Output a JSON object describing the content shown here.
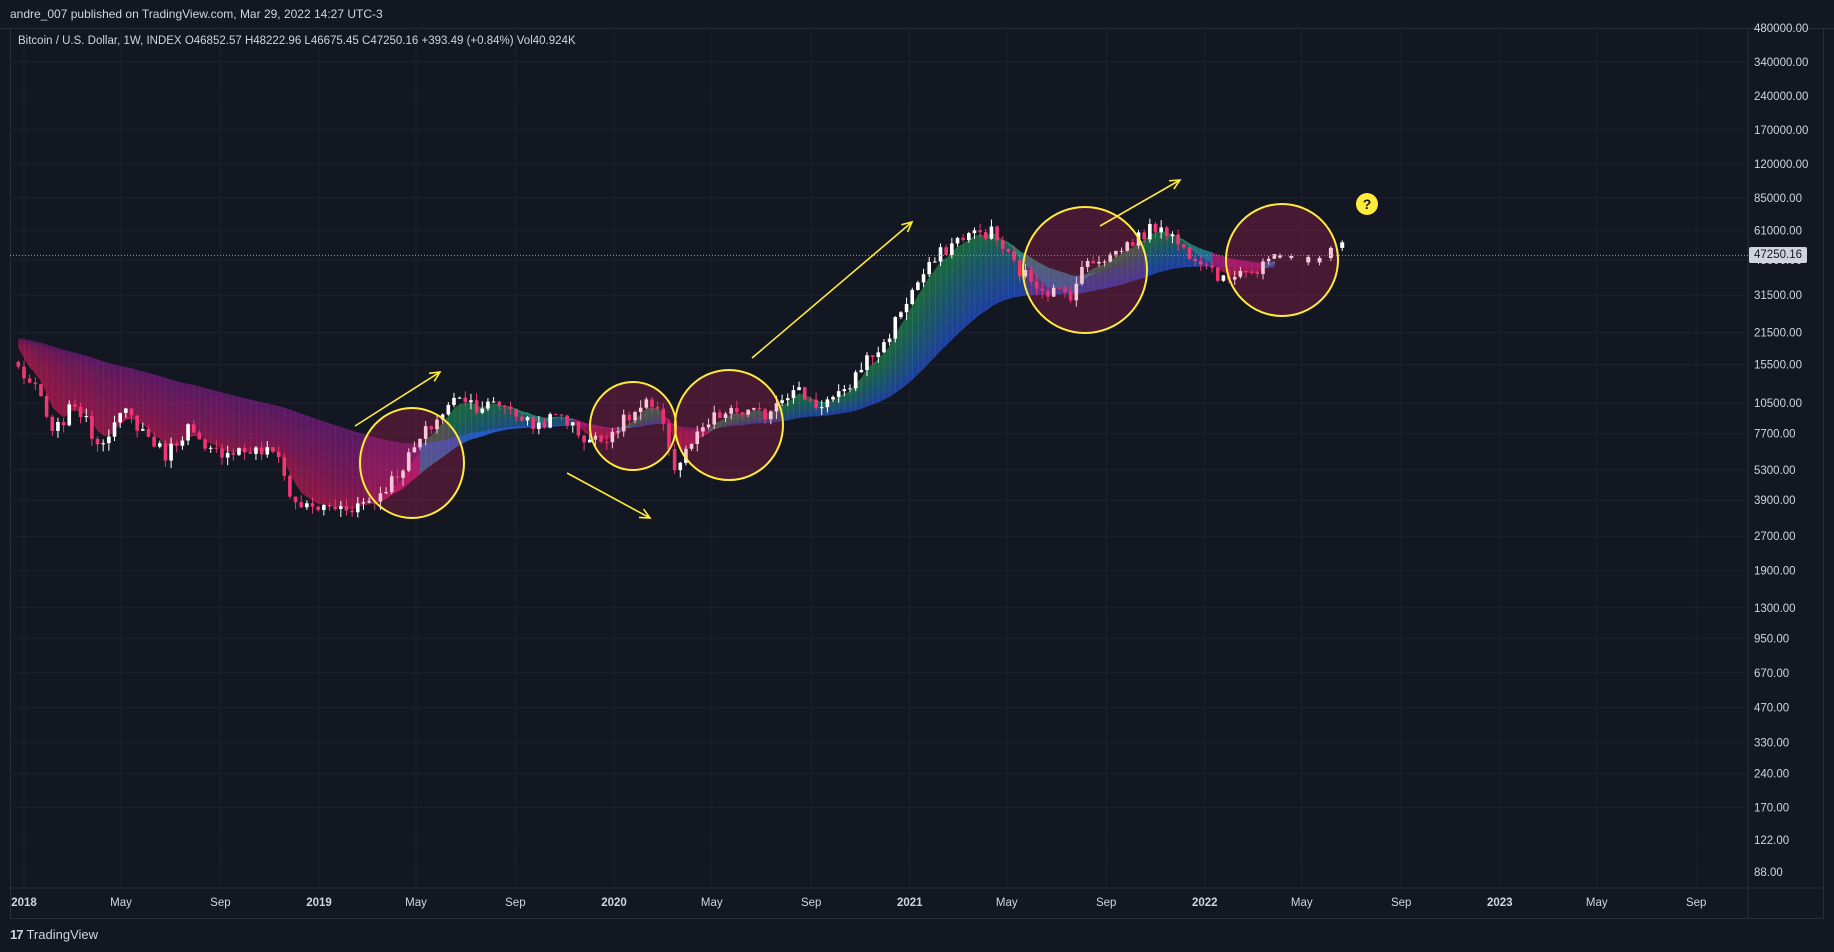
{
  "header": {
    "published": "andre_007 published on TradingView.com, Mar 29, 2022 14:27 UTC-3"
  },
  "legend": {
    "symbol": "Bitcoin / U.S. Dollar, 1W, INDEX",
    "open_label": "O",
    "open": "46852.57",
    "high_label": "H",
    "high": "48222.96",
    "low_label": "L",
    "low": "46675.45",
    "close_label": "C",
    "close": "47250.16",
    "change": "+393.49 (+0.84%)",
    "vol_label": "Vol",
    "vol": "40.924K"
  },
  "current_price_tag": "47250.16",
  "question_mark": "?",
  "footer": {
    "logo_mark": "17",
    "logo_text": "TradingView"
  },
  "colors": {
    "background": "#131722",
    "grid": "#1e222d",
    "up": "#ffffff",
    "down": "#f23674",
    "ribbon_fast": "#26a65b",
    "ribbon_slow": "#2962ff",
    "ribbon_bear": "#e91e63",
    "annotation": "#ffeb3b"
  },
  "chart_data": {
    "type": "candlestick",
    "y_scale": "log",
    "ylim": [
      70,
      480000
    ],
    "y_ticks": [
      {
        "value": 480000,
        "label": "480000.00"
      },
      {
        "value": 340000,
        "label": "340000.00"
      },
      {
        "value": 240000,
        "label": "240000.00"
      },
      {
        "value": 170000,
        "label": "170000.00"
      },
      {
        "value": 120000,
        "label": "120000.00"
      },
      {
        "value": 85000,
        "label": "85000.00"
      },
      {
        "value": 61000,
        "label": "61000.00"
      },
      {
        "value": 45000,
        "label": "45000.00"
      },
      {
        "value": 31500,
        "label": "31500.00"
      },
      {
        "value": 21500,
        "label": "21500.00"
      },
      {
        "value": 15500,
        "label": "15500.00"
      },
      {
        "value": 10500,
        "label": "10500.00"
      },
      {
        "value": 7700,
        "label": "7700.00"
      },
      {
        "value": 5300,
        "label": "5300.00"
      },
      {
        "value": 3900,
        "label": "3900.00"
      },
      {
        "value": 2700,
        "label": "2700.00"
      },
      {
        "value": 1900,
        "label": "1900.00"
      },
      {
        "value": 1300,
        "label": "1300.00"
      },
      {
        "value": 950,
        "label": "950.00"
      },
      {
        "value": 670,
        "label": "670.00"
      },
      {
        "value": 470,
        "label": "470.00"
      },
      {
        "value": 330,
        "label": "330.00"
      },
      {
        "value": 240,
        "label": "240.00"
      },
      {
        "value": 170,
        "label": "170.00"
      },
      {
        "value": 122,
        "label": "122.00"
      },
      {
        "value": 88,
        "label": "88.00"
      }
    ],
    "x_ticks": [
      {
        "date": "2018-01-01",
        "label": "2018",
        "bold": true
      },
      {
        "date": "2018-05-01",
        "label": "May"
      },
      {
        "date": "2018-09-01",
        "label": "Sep"
      },
      {
        "date": "2019-01-01",
        "label": "2019",
        "bold": true
      },
      {
        "date": "2019-05-01",
        "label": "May"
      },
      {
        "date": "2019-09-01",
        "label": "Sep"
      },
      {
        "date": "2020-01-01",
        "label": "2020",
        "bold": true
      },
      {
        "date": "2020-05-01",
        "label": "May"
      },
      {
        "date": "2020-09-01",
        "label": "Sep"
      },
      {
        "date": "2021-01-01",
        "label": "2021",
        "bold": true
      },
      {
        "date": "2021-05-01",
        "label": "May"
      },
      {
        "date": "2021-09-01",
        "label": "Sep"
      },
      {
        "date": "2022-01-01",
        "label": "2022",
        "bold": true
      },
      {
        "date": "2022-05-01",
        "label": "May"
      },
      {
        "date": "2022-09-01",
        "label": "Sep"
      },
      {
        "date": "2023-01-01",
        "label": "2023",
        "bold": true
      },
      {
        "date": "2023-05-01",
        "label": "May"
      },
      {
        "date": "2023-09-01",
        "label": "Sep"
      }
    ],
    "price_path": [
      [
        "2017-12-25",
        15000
      ],
      [
        "2018-01-22",
        11000
      ],
      [
        "2018-02-05",
        7500
      ],
      [
        "2018-03-05",
        10500
      ],
      [
        "2018-04-02",
        7000
      ],
      [
        "2018-05-07",
        9500
      ],
      [
        "2018-06-25",
        6200
      ],
      [
        "2018-07-23",
        8200
      ],
      [
        "2018-08-13",
        6300
      ],
      [
        "2018-09-17",
        6500
      ],
      [
        "2018-10-15",
        6400
      ],
      [
        "2018-11-12",
        6300
      ],
      [
        "2018-11-26",
        4000
      ],
      [
        "2018-12-17",
        3600
      ],
      [
        "2019-01-14",
        3600
      ],
      [
        "2019-02-11",
        3650
      ],
      [
        "2019-03-11",
        3950
      ],
      [
        "2019-04-08",
        5100
      ],
      [
        "2019-05-13",
        7800
      ],
      [
        "2019-06-24",
        11500
      ],
      [
        "2019-07-15",
        10200
      ],
      [
        "2019-08-19",
        10300
      ],
      [
        "2019-09-23",
        8300
      ],
      [
        "2019-10-28",
        9300
      ],
      [
        "2019-11-25",
        7300
      ],
      [
        "2019-12-16",
        7200
      ],
      [
        "2020-01-13",
        8700
      ],
      [
        "2020-02-10",
        10300
      ],
      [
        "2020-03-02",
        8800
      ],
      [
        "2020-03-16",
        5300
      ],
      [
        "2020-04-06",
        6900
      ],
      [
        "2020-05-04",
        9000
      ],
      [
        "2020-06-01",
        9600
      ],
      [
        "2020-07-06",
        9300
      ],
      [
        "2020-07-27",
        11500
      ],
      [
        "2020-08-17",
        11800
      ],
      [
        "2020-09-07",
        10300
      ],
      [
        "2020-10-12",
        11400
      ],
      [
        "2020-11-02",
        15500
      ],
      [
        "2020-11-30",
        19000
      ],
      [
        "2020-12-21",
        27000
      ],
      [
        "2021-01-11",
        36000
      ],
      [
        "2021-02-08",
        48000
      ],
      [
        "2021-03-08",
        58000
      ],
      [
        "2021-04-12",
        60000
      ],
      [
        "2021-05-17",
        40000
      ],
      [
        "2021-06-21",
        33000
      ],
      [
        "2021-07-19",
        32000
      ],
      [
        "2021-08-09",
        45000
      ],
      [
        "2021-09-06",
        47000
      ],
      [
        "2021-10-04",
        55000
      ],
      [
        "2021-11-08",
        65000
      ],
      [
        "2021-12-06",
        50000
      ],
      [
        "2022-01-03",
        45000
      ],
      [
        "2022-01-24",
        36000
      ],
      [
        "2022-02-14",
        42000
      ],
      [
        "2022-03-07",
        39000
      ],
      [
        "2022-03-28",
        47250
      ]
    ],
    "projection": [
      [
        "2022-04-04",
        47000
      ],
      [
        "2022-04-18",
        46500
      ],
      [
        "2022-05-09",
        44000
      ],
      [
        "2022-05-23",
        46000
      ],
      [
        "2022-06-06",
        51000
      ],
      [
        "2022-06-20",
        54000
      ]
    ],
    "current_price": 47250.16
  }
}
